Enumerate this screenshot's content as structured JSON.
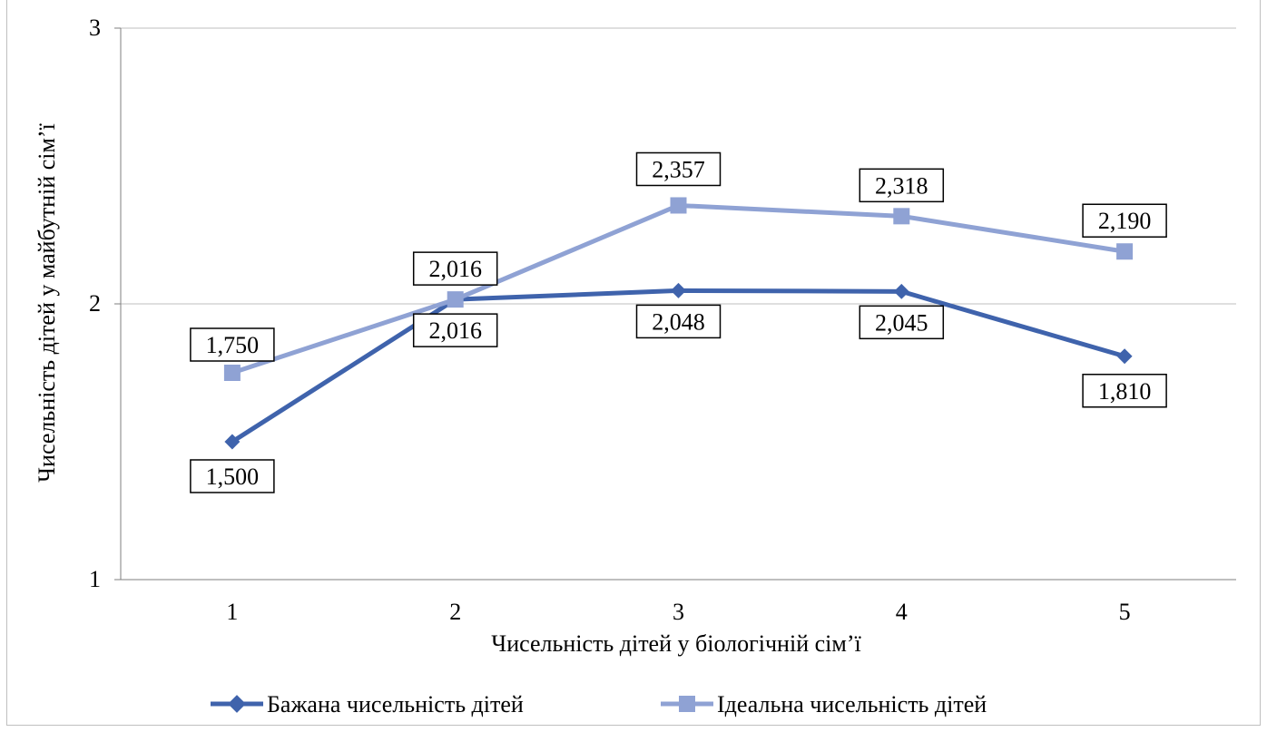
{
  "chart_data": {
    "type": "line",
    "title": "",
    "xlabel": "Чисельність дітей у біологічній сім’ї",
    "ylabel": "Чисельність дітей у майбутній сім’ї",
    "ylim": [
      1,
      3
    ],
    "yticks": [
      "1",
      "2",
      "3"
    ],
    "ytick_values": [
      1,
      2,
      3
    ],
    "grid": true,
    "legend_position": "bottom",
    "categories": [
      "1",
      "2",
      "3",
      "4",
      "5"
    ],
    "x": [
      1,
      2,
      3,
      4,
      5
    ],
    "series": [
      {
        "name": "Бажана чисельність дітей",
        "values": [
          1.5,
          2.016,
          2.048,
          2.045,
          1.81
        ],
        "labels": [
          "1,500",
          "2,016",
          "2,048",
          "2,045",
          "1,810"
        ],
        "color": "#3f63ac",
        "marker": "diamond"
      },
      {
        "name": "Ідеальна чисельність дітей",
        "values": [
          1.75,
          2.016,
          2.357,
          2.318,
          2.19
        ],
        "labels": [
          "1,750",
          "2,016",
          "2,357",
          "2,318",
          "2,190"
        ],
        "color": "#8fa2d4",
        "marker": "square"
      }
    ]
  }
}
